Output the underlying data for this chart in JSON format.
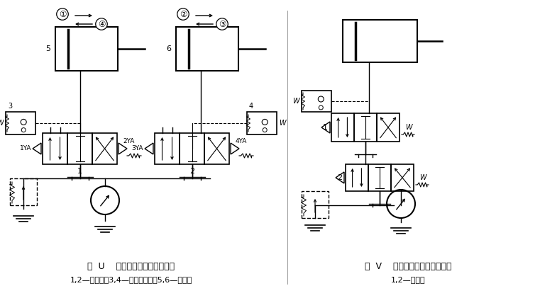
{
  "fig_width": 7.61,
  "fig_height": 4.21,
  "dpi": 100,
  "bg_color": "#ffffff",
  "line_color": "#000000",
  "caption_left": "图  U    压力继电器用于顺序控制",
  "caption_left2": "1,2—换向阀；3,4—压力继电器；5,6—液压缸",
  "caption_right": "图  V    压力继电器用于安全保护",
  "caption_right2": "1,2—电磁阀"
}
